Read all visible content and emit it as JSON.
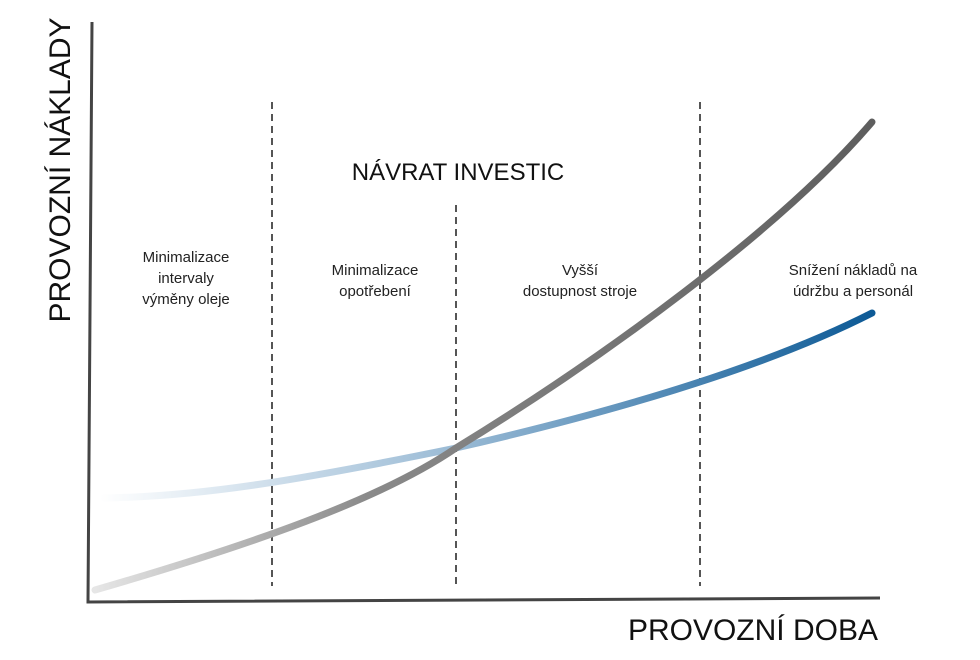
{
  "y_axis_label": "PROVOZNÍ NÁKLADY",
  "x_axis_label": "PROVOZNÍ DOBA",
  "title": "NÁVRAT INVESTIC",
  "regions": [
    {
      "lines": [
        "Minimalizace",
        "intervaly",
        "výměny oleje"
      ]
    },
    {
      "lines": [
        "Minimalizace",
        "opotřebení"
      ]
    },
    {
      "lines": [
        "Vyšší",
        "dostupnost stroje"
      ]
    },
    {
      "lines": [
        "Snížení nákladů na",
        "údržbu a personál"
      ]
    }
  ]
}
